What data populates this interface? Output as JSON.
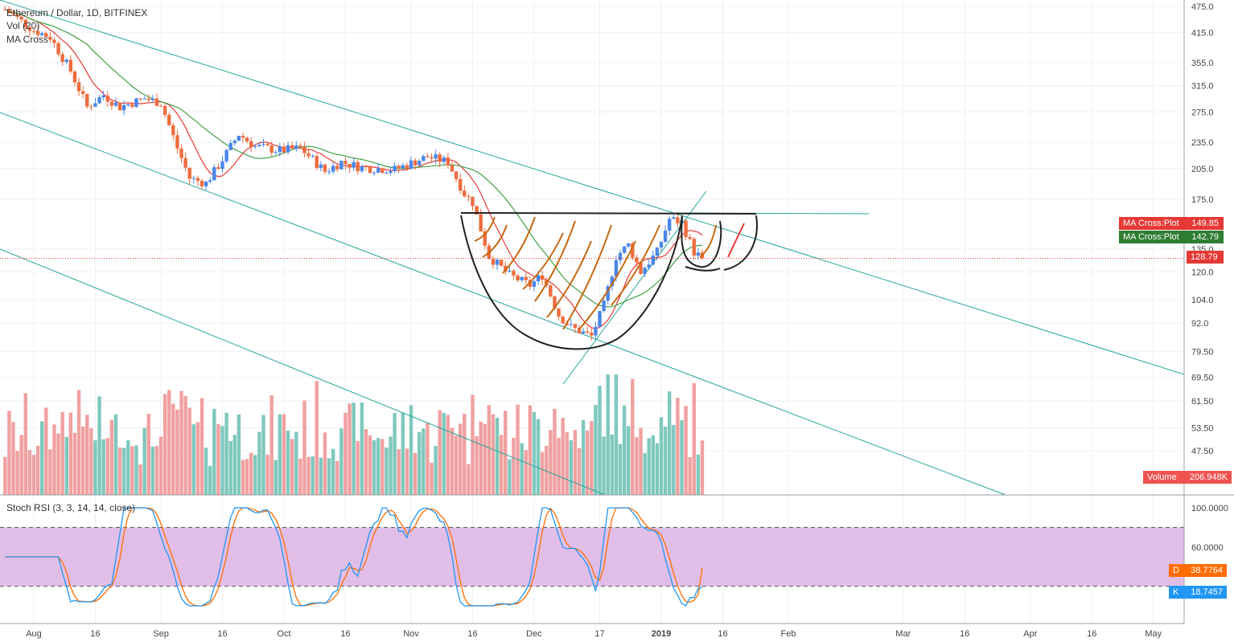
{
  "header": {
    "symbol": "Ethereum / Dollar, 1D, BITFINEX",
    "indicator_vol": "Vol (20)",
    "indicator_ma": "MA Cross"
  },
  "stoch": {
    "title": "Stoch RSI (3, 3, 14, 14, close)",
    "upper_band": 80,
    "lower_band": 20,
    "d_label": "D",
    "d_value": "38.7764",
    "k_label": "K",
    "k_value": "18.7457",
    "y_ticks": [
      "100.0000",
      "60.0000"
    ]
  },
  "price_tags": {
    "ma_fast_label": "MA Cross:Plot",
    "ma_fast_value": "149.85",
    "ma_slow_label": "MA Cross:Plot",
    "ma_slow_value": "142.79",
    "last_price": "128.79",
    "volume_label": "Volume",
    "volume_value": "206.948K"
  },
  "colors": {
    "up": "#4a86e8",
    "down": "#ef6c3e",
    "vol_up": "#7fc8bd",
    "vol_down": "#f0a0a0",
    "ma_fast": "#e53935",
    "ma_slow": "#43a047",
    "channel": "#26a69a",
    "stoch_k": "#2196f3",
    "stoch_d": "#ff6d00",
    "stoch_band": "#e1bee7",
    "tag_red": "#e53935",
    "tag_green": "#2e7d32",
    "tag_vol": "#ef5350",
    "tag_k": "#2196f3",
    "tag_d": "#ff6d00"
  },
  "chart_data": {
    "type": "candlestick",
    "title": "Ethereum / Dollar, 1D, BITFINEX",
    "price_scale": "log",
    "y_ticks": [
      475.0,
      415.0,
      355.0,
      315.0,
      275.0,
      235.0,
      205.0,
      175.0,
      135.0,
      120.0,
      104.0,
      92.0,
      79.5,
      69.5,
      61.5,
      53.5,
      47.5
    ],
    "x_ticks": [
      "Aug",
      "16",
      "Sep",
      "16",
      "Oct",
      "16",
      "Nov",
      "16",
      "Dec",
      "17",
      "2019",
      "16",
      "Feb",
      "Mar",
      "16",
      "Apr",
      "16",
      "May"
    ],
    "x_tick_dates": [
      "2018-08-01",
      "2018-08-16",
      "2018-09-01",
      "2018-09-16",
      "2018-10-01",
      "2018-10-16",
      "2018-11-01",
      "2018-11-16",
      "2018-12-01",
      "2018-12-17",
      "2019-01-01",
      "2019-01-16",
      "2019-02-01",
      "2019-03-01",
      "2019-03-16",
      "2019-04-01",
      "2019-04-16",
      "2019-05-01"
    ],
    "close_series": {
      "dates": [
        "2018-07-25",
        "2018-08-01",
        "2018-08-05",
        "2018-08-10",
        "2018-08-14",
        "2018-08-18",
        "2018-08-22",
        "2018-08-28",
        "2018-09-01",
        "2018-09-05",
        "2018-09-08",
        "2018-09-12",
        "2018-09-15",
        "2018-09-20",
        "2018-09-24",
        "2018-09-30",
        "2018-10-05",
        "2018-10-11",
        "2018-10-15",
        "2018-10-20",
        "2018-10-28",
        "2018-11-05",
        "2018-11-10",
        "2018-11-14",
        "2018-11-16",
        "2018-11-20",
        "2018-11-25",
        "2018-11-30",
        "2018-12-03",
        "2018-12-07",
        "2018-12-10",
        "2018-12-15",
        "2018-12-18",
        "2018-12-21",
        "2018-12-24",
        "2018-12-27",
        "2018-12-31",
        "2019-01-03",
        "2019-01-06",
        "2019-01-09",
        "2019-01-11"
      ],
      "close": [
        468,
        420,
        405,
        340,
        282,
        300,
        282,
        295,
        288,
        228,
        195,
        190,
        208,
        245,
        230,
        225,
        228,
        202,
        212,
        206,
        204,
        218,
        212,
        180,
        172,
        130,
        118,
        112,
        118,
        96,
        90,
        86,
        101,
        130,
        138,
        120,
        133,
        158,
        155,
        133,
        128.79
      ]
    },
    "series": [
      {
        "name": "MA Cross:Plot",
        "last": 149.85
      },
      {
        "name": "MA Cross:Plot",
        "last": 142.79
      }
    ],
    "last_price": 128.79,
    "volume_last": "206.948K",
    "stoch_rsi": {
      "K": 18.7457,
      "D": 38.7764
    },
    "annotations": [
      "descending channel lines",
      "cup and handle drawing",
      "neckline"
    ]
  }
}
